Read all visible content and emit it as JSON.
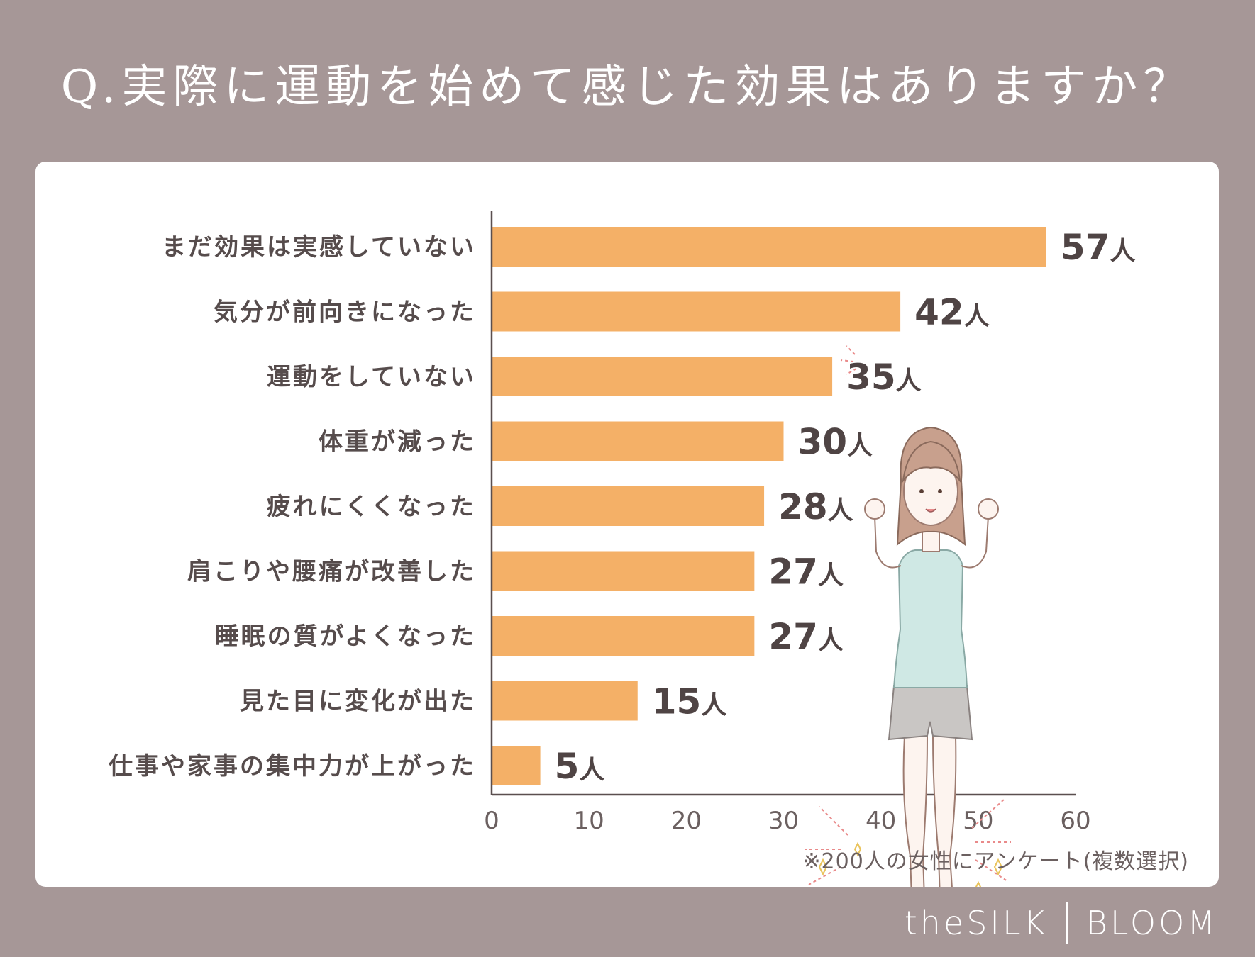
{
  "title": "Q.実際に運動を始めて感じた効果はありますか？",
  "note": "※200人の女性にアンケート(複数選択)",
  "logo": {
    "left": "theSILK",
    "right": "BLOOM"
  },
  "colors": {
    "background": "#a69797",
    "bar": "#f4b067",
    "card": "#ffffff"
  },
  "chart_data": {
    "type": "bar",
    "orientation": "horizontal",
    "categories": [
      "まだ効果は実感していない",
      "気分が前向きになった",
      "運動をしていない",
      "体重が減った",
      "疲れにくくなった",
      "肩こりや腰痛が改善した",
      "睡眠の質がよくなった",
      "見た目に変化が出た",
      "仕事や家事の集中力が上がった"
    ],
    "values": [
      57,
      42,
      35,
      30,
      28,
      27,
      27,
      15,
      5
    ],
    "value_unit": "人",
    "xlim": [
      0,
      60
    ],
    "xticks": [
      0,
      10,
      20,
      30,
      40,
      50,
      60
    ],
    "grid": false
  }
}
